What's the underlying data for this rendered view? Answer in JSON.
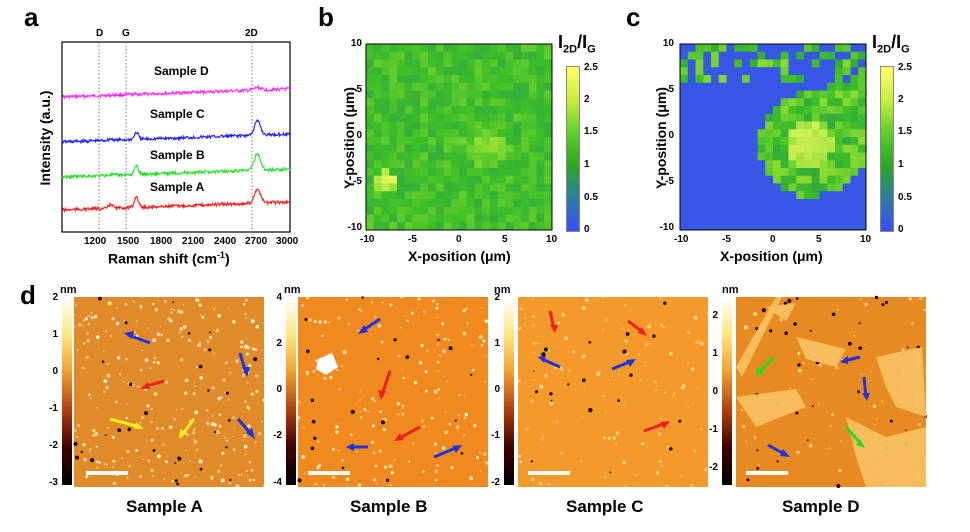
{
  "panels": {
    "a": {
      "letter": "a",
      "xlabel": "Raman shift (cm",
      "xlabel_sup": "-1",
      "xlabel_end": ")",
      "ylabel": "Intensity (a.u.)",
      "peak_labels": [
        "D",
        "G",
        "2D"
      ],
      "xticks": [
        "1200",
        "1500",
        "1800",
        "2100",
        "2400",
        "2700",
        "3000"
      ],
      "series_labels": [
        "Sample D",
        "Sample C",
        "Sample B",
        "Sample A"
      ],
      "colors": {
        "Sample A": "#ff1a1a",
        "Sample B": "#22e022",
        "Sample C": "#1a1aff",
        "Sample D": "#ff22ff"
      }
    },
    "b": {
      "letter": "b",
      "xlabel": "X-position (μm)",
      "ylabel": "Y-position (μm)",
      "xticks": [
        "-10",
        "-5",
        "0",
        "5",
        "10"
      ],
      "yticks": [
        "10",
        "5",
        "0",
        "-5",
        "-10"
      ],
      "colorbar_title": "I",
      "colorbar_sub1": "2D",
      "colorbar_mid": "/I",
      "colorbar_sub2": "G",
      "colorbar_ticks": [
        "2.5",
        "2",
        "1.5",
        "1",
        "0.5",
        "0"
      ]
    },
    "c": {
      "letter": "c",
      "xlabel": "X-position (μm)",
      "ylabel": "Y-position (μm)",
      "xticks": [
        "-10",
        "-5",
        "0",
        "5",
        "10"
      ],
      "yticks": [
        "10",
        "5",
        "0",
        "-5",
        "-10"
      ],
      "colorbar_title": "I",
      "colorbar_sub1": "2D",
      "colorbar_mid": "/I",
      "colorbar_sub2": "G",
      "colorbar_ticks": [
        "2.5",
        "2",
        "1.5",
        "1",
        "0.5",
        "0"
      ]
    },
    "d": {
      "letter": "d",
      "unit": "nm",
      "afm": [
        {
          "caption": "Sample A",
          "ticks": [
            "2",
            "1",
            "0",
            "-1",
            "-2",
            "-3"
          ]
        },
        {
          "caption": "Sample B",
          "ticks": [
            "4",
            "2",
            "0",
            "-2",
            "-4"
          ]
        },
        {
          "caption": "Sample C",
          "ticks": [
            "2",
            "1",
            "0",
            "-1",
            "-2"
          ]
        },
        {
          "caption": "Sample D",
          "ticks": [
            "2",
            "1",
            "0",
            "-1",
            "-2"
          ]
        }
      ]
    }
  },
  "chart_data": [
    {
      "type": "line",
      "xlabel": "Raman shift (cm-1)",
      "ylabel": "Intensity (a.u.)",
      "xlim": [
        900,
        3000
      ],
      "peaks": {
        "D": 1350,
        "G": 1585,
        "2D": 2700
      },
      "series": [
        {
          "name": "Sample D",
          "color": "#ff22ff",
          "peak_heights": {
            "D": 0,
            "G": 0,
            "2D": 0.2
          }
        },
        {
          "name": "Sample C",
          "color": "#1a1aff",
          "peak_heights": {
            "D": 0.1,
            "G": 0.5,
            "2D": 1.0
          }
        },
        {
          "name": "Sample B",
          "color": "#22e022",
          "peak_heights": {
            "D": 0.05,
            "G": 0.6,
            "2D": 1.2
          }
        },
        {
          "name": "Sample A",
          "color": "#ff1a1a",
          "peak_heights": {
            "D": 0.3,
            "G": 0.8,
            "2D": 1.0
          }
        }
      ]
    },
    {
      "type": "heatmap",
      "xlim": [
        -10,
        10
      ],
      "ylim": [
        -10,
        10
      ],
      "clim": [
        0,
        2.5
      ]
    },
    {
      "type": "heatmap",
      "xlim": [
        -10,
        10
      ],
      "ylim": [
        -10,
        10
      ],
      "clim": [
        0,
        2.5
      ]
    }
  ]
}
